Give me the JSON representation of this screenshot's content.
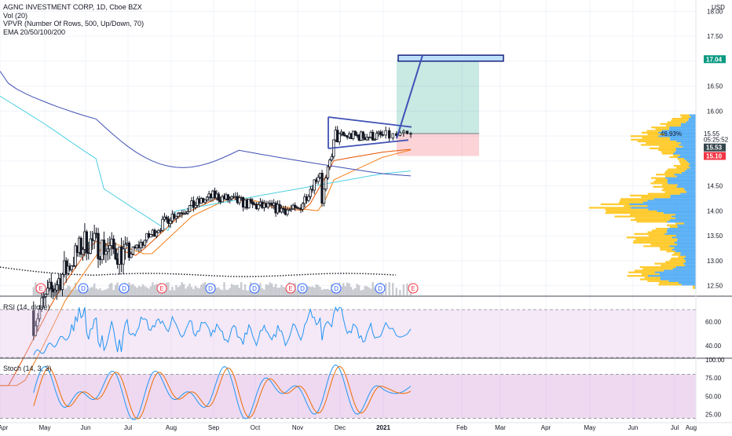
{
  "legend": {
    "symbol": "AGNC INVESTMENT CORP, 1D, Cboe BZX",
    "vol": "Vol (20)",
    "vpvr": "VPVR (Number Of Rows, 500, Up/Down, 70)",
    "ema": "EMA 20/50/100/200"
  },
  "currency": "USD",
  "price_axis": {
    "ticks": [
      "18.00",
      "17.50",
      "16.50",
      "16.00",
      "14.50",
      "14.00",
      "13.50",
      "13.00",
      "12.50"
    ]
  },
  "price_badges": [
    {
      "label": "17.04",
      "value": 17.04,
      "color": "#089981"
    },
    {
      "label": "15.55",
      "value": 15.55,
      "color": "#131722"
    },
    {
      "label": "05:25:52",
      "value": 15.43,
      "color": "#131722"
    },
    {
      "label": "15.53",
      "value": 15.27,
      "color": "#37474f"
    },
    {
      "label": "15.10",
      "value": 15.1,
      "color": "#f23645"
    }
  ],
  "position_label": "46.93%",
  "rsi": {
    "label": "RSI (14, close)",
    "ticks": [
      "60.00",
      "40.00"
    ],
    "range": [
      30,
      80
    ],
    "bands": [
      30,
      70
    ]
  },
  "stoch": {
    "label": "Stoch (14, 3, 3)",
    "ticks": [
      "100.00",
      "75.00",
      "50.00",
      "25.00"
    ],
    "range": [
      15,
      100
    ],
    "bands": [
      20,
      80
    ]
  },
  "time_axis": {
    "labels": [
      "Apr",
      "May",
      "Jun",
      "Jul",
      "Aug",
      "Sep",
      "Oct",
      "Nov",
      "Dec",
      "2021",
      "Feb",
      "Mar",
      "Apr",
      "May",
      "Jun",
      "Jul",
      "Aug"
    ]
  },
  "event_markers": [
    {
      "type": "E",
      "color": "#f23645"
    },
    {
      "type": "D",
      "color": "#2962ff"
    },
    {
      "type": "D",
      "color": "#2962ff"
    },
    {
      "type": "E",
      "color": "#f23645"
    },
    {
      "type": "D",
      "color": "#2962ff"
    },
    {
      "type": "D",
      "color": "#2962ff"
    },
    {
      "type": "E",
      "color": "#f23645"
    },
    {
      "type": "D",
      "color": "#2962ff"
    },
    {
      "type": "D",
      "color": "#2962ff"
    },
    {
      "type": "D",
      "color": "#2962ff"
    },
    {
      "type": "E",
      "color": "#f23645"
    }
  ],
  "chart_data": {
    "type": "candlestick",
    "title": "AGNC INVESTMENT CORP, 1D, Cboe BZX",
    "ylim": [
      12.4,
      18.1
    ],
    "price_key_points": [
      [
        "Apr",
        10.5
      ],
      [
        "May",
        12.2
      ],
      [
        "Jun",
        13.4
      ],
      [
        "Jul",
        13.1
      ],
      [
        "Aug",
        13.9
      ],
      [
        "Sep",
        14.3
      ],
      [
        "Oct",
        14.1
      ],
      [
        "Nov",
        14.0
      ],
      [
        "Dec",
        15.5
      ],
      [
        "2021",
        15.5
      ]
    ],
    "ema_series": [
      {
        "color": "#e65100",
        "start": 13.6,
        "end": 15.2
      },
      {
        "color": "#f57f17",
        "start": 15.0,
        "end": 14.8
      },
      {
        "color": "#4dd0e1",
        "start": 16.3,
        "end": 14.8
      },
      {
        "color": "#3f51b5",
        "start": 16.8,
        "end": 14.7
      }
    ],
    "trade_setup": {
      "entry": 15.55,
      "target": 17.04,
      "stop": 15.1,
      "target_zone": [
        17.0,
        17.12
      ]
    },
    "colors": {
      "up": "#26a69a",
      "down": "#ef5350",
      "candle": "#131722",
      "volume": "#b2b5be",
      "rsi": "#2196f3",
      "stoch_k": "#2196f3",
      "stoch_d": "#ef6c00",
      "vp_up": "#2196f3",
      "vp_down": "#ffc107"
    }
  }
}
